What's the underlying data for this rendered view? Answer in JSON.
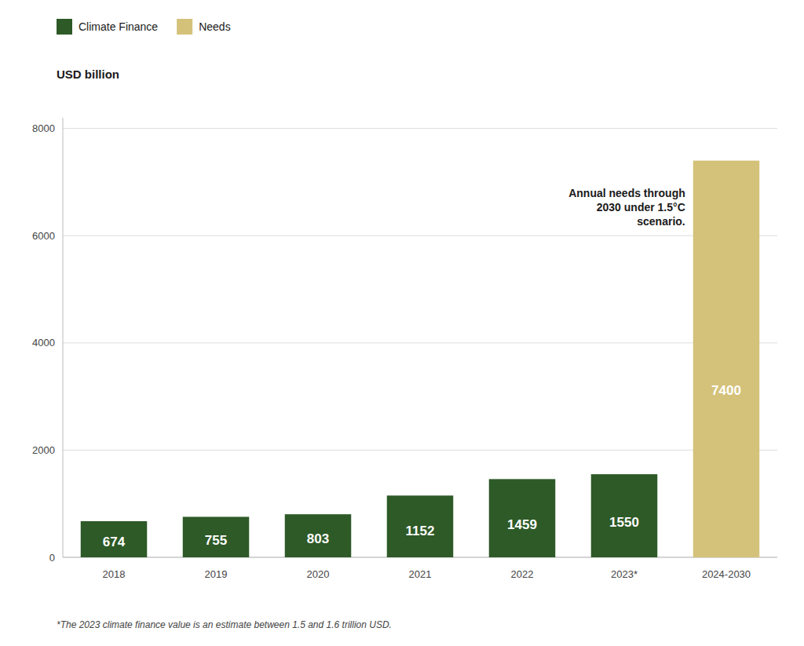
{
  "chart_data": {
    "type": "bar",
    "categories": [
      "2018",
      "2019",
      "2020",
      "2021",
      "2022",
      "2023*",
      "2024-2030"
    ],
    "series": [
      {
        "name": "Climate Finance",
        "color": "#2d5a27",
        "values": [
          674,
          755,
          803,
          1152,
          1459,
          1550,
          null
        ]
      },
      {
        "name": "Needs",
        "color": "#d4c27a",
        "values": [
          null,
          null,
          null,
          null,
          null,
          null,
          7400
        ]
      }
    ],
    "stacked": true,
    "ylabel": "USD billion",
    "ylim": [
      0,
      8200
    ],
    "yticks": [
      0,
      2000,
      4000,
      6000,
      8000
    ],
    "grid": true,
    "legend": "top-left",
    "data_labels": true,
    "annotations": [
      "Annual needs through\n2030 under 1.5°C\nscenario.",
      "*The 2023 climate finance value is an estimate between 1.5 and 1.6 trillion USD."
    ]
  }
}
